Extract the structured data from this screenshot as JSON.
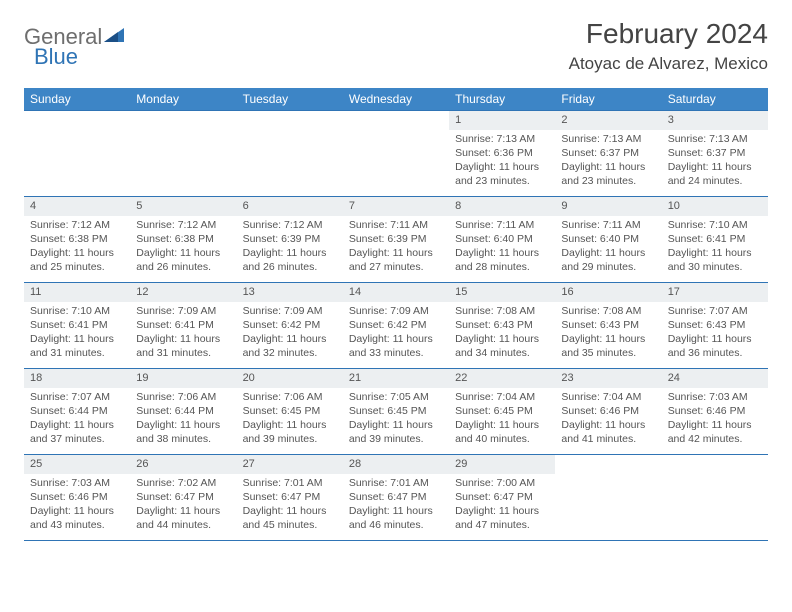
{
  "logo": {
    "text1": "General",
    "text2": "Blue"
  },
  "title": "February 2024",
  "location": "Atoyac de Alvarez, Mexico",
  "header_bg": "#3d85c6",
  "border_color": "#2f74b5",
  "daynum_bg": "#eceff1",
  "days": [
    "Sunday",
    "Monday",
    "Tuesday",
    "Wednesday",
    "Thursday",
    "Friday",
    "Saturday"
  ],
  "weeks": [
    [
      null,
      null,
      null,
      null,
      {
        "n": "1",
        "sr": "7:13 AM",
        "ss": "6:36 PM",
        "dl": "11 hours and 23 minutes."
      },
      {
        "n": "2",
        "sr": "7:13 AM",
        "ss": "6:37 PM",
        "dl": "11 hours and 23 minutes."
      },
      {
        "n": "3",
        "sr": "7:13 AM",
        "ss": "6:37 PM",
        "dl": "11 hours and 24 minutes."
      }
    ],
    [
      {
        "n": "4",
        "sr": "7:12 AM",
        "ss": "6:38 PM",
        "dl": "11 hours and 25 minutes."
      },
      {
        "n": "5",
        "sr": "7:12 AM",
        "ss": "6:38 PM",
        "dl": "11 hours and 26 minutes."
      },
      {
        "n": "6",
        "sr": "7:12 AM",
        "ss": "6:39 PM",
        "dl": "11 hours and 26 minutes."
      },
      {
        "n": "7",
        "sr": "7:11 AM",
        "ss": "6:39 PM",
        "dl": "11 hours and 27 minutes."
      },
      {
        "n": "8",
        "sr": "7:11 AM",
        "ss": "6:40 PM",
        "dl": "11 hours and 28 minutes."
      },
      {
        "n": "9",
        "sr": "7:11 AM",
        "ss": "6:40 PM",
        "dl": "11 hours and 29 minutes."
      },
      {
        "n": "10",
        "sr": "7:10 AM",
        "ss": "6:41 PM",
        "dl": "11 hours and 30 minutes."
      }
    ],
    [
      {
        "n": "11",
        "sr": "7:10 AM",
        "ss": "6:41 PM",
        "dl": "11 hours and 31 minutes."
      },
      {
        "n": "12",
        "sr": "7:09 AM",
        "ss": "6:41 PM",
        "dl": "11 hours and 31 minutes."
      },
      {
        "n": "13",
        "sr": "7:09 AM",
        "ss": "6:42 PM",
        "dl": "11 hours and 32 minutes."
      },
      {
        "n": "14",
        "sr": "7:09 AM",
        "ss": "6:42 PM",
        "dl": "11 hours and 33 minutes."
      },
      {
        "n": "15",
        "sr": "7:08 AM",
        "ss": "6:43 PM",
        "dl": "11 hours and 34 minutes."
      },
      {
        "n": "16",
        "sr": "7:08 AM",
        "ss": "6:43 PM",
        "dl": "11 hours and 35 minutes."
      },
      {
        "n": "17",
        "sr": "7:07 AM",
        "ss": "6:43 PM",
        "dl": "11 hours and 36 minutes."
      }
    ],
    [
      {
        "n": "18",
        "sr": "7:07 AM",
        "ss": "6:44 PM",
        "dl": "11 hours and 37 minutes."
      },
      {
        "n": "19",
        "sr": "7:06 AM",
        "ss": "6:44 PM",
        "dl": "11 hours and 38 minutes."
      },
      {
        "n": "20",
        "sr": "7:06 AM",
        "ss": "6:45 PM",
        "dl": "11 hours and 39 minutes."
      },
      {
        "n": "21",
        "sr": "7:05 AM",
        "ss": "6:45 PM",
        "dl": "11 hours and 39 minutes."
      },
      {
        "n": "22",
        "sr": "7:04 AM",
        "ss": "6:45 PM",
        "dl": "11 hours and 40 minutes."
      },
      {
        "n": "23",
        "sr": "7:04 AM",
        "ss": "6:46 PM",
        "dl": "11 hours and 41 minutes."
      },
      {
        "n": "24",
        "sr": "7:03 AM",
        "ss": "6:46 PM",
        "dl": "11 hours and 42 minutes."
      }
    ],
    [
      {
        "n": "25",
        "sr": "7:03 AM",
        "ss": "6:46 PM",
        "dl": "11 hours and 43 minutes."
      },
      {
        "n": "26",
        "sr": "7:02 AM",
        "ss": "6:47 PM",
        "dl": "11 hours and 44 minutes."
      },
      {
        "n": "27",
        "sr": "7:01 AM",
        "ss": "6:47 PM",
        "dl": "11 hours and 45 minutes."
      },
      {
        "n": "28",
        "sr": "7:01 AM",
        "ss": "6:47 PM",
        "dl": "11 hours and 46 minutes."
      },
      {
        "n": "29",
        "sr": "7:00 AM",
        "ss": "6:47 PM",
        "dl": "11 hours and 47 minutes."
      },
      null,
      null
    ]
  ],
  "labels": {
    "sunrise": "Sunrise: ",
    "sunset": "Sunset: ",
    "daylight": "Daylight: "
  }
}
